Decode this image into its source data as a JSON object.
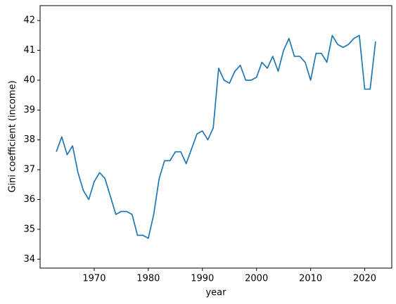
{
  "chart_data": {
    "type": "line",
    "xlabel": "year",
    "ylabel": "Gini coefficient (income)",
    "x": [
      1963,
      1964,
      1965,
      1966,
      1967,
      1968,
      1969,
      1970,
      1971,
      1972,
      1973,
      1974,
      1975,
      1976,
      1977,
      1978,
      1979,
      1980,
      1981,
      1982,
      1983,
      1984,
      1985,
      1986,
      1987,
      1988,
      1989,
      1990,
      1991,
      1992,
      1993,
      1994,
      1995,
      1996,
      1997,
      1998,
      1999,
      2000,
      2001,
      2002,
      2003,
      2004,
      2005,
      2006,
      2007,
      2008,
      2009,
      2010,
      2011,
      2012,
      2013,
      2014,
      2015,
      2016,
      2017,
      2018,
      2019,
      2020,
      2021,
      2022
    ],
    "values": [
      37.6,
      38.1,
      37.5,
      37.8,
      36.9,
      36.3,
      36.0,
      36.6,
      36.9,
      36.7,
      36.1,
      35.5,
      35.6,
      35.6,
      35.5,
      34.8,
      34.8,
      34.7,
      35.5,
      36.7,
      37.3,
      37.3,
      37.6,
      37.6,
      37.2,
      37.7,
      38.2,
      38.3,
      38.0,
      38.4,
      40.4,
      40.0,
      39.9,
      40.3,
      40.5,
      40.0,
      40.0,
      40.1,
      40.6,
      40.4,
      40.8,
      40.3,
      41.0,
      41.4,
      40.8,
      40.8,
      40.6,
      40.0,
      40.9,
      40.9,
      40.6,
      41.5,
      41.2,
      41.1,
      41.2,
      41.4,
      41.5,
      39.7,
      39.7,
      41.3
    ],
    "color": "#1f77b4",
    "xlim": [
      1960,
      2025
    ],
    "xticks": [
      1970,
      1980,
      1990,
      2000,
      2010,
      2020
    ],
    "ylim": [
      33.7,
      42.5
    ],
    "yticks": [
      34,
      35,
      36,
      37,
      38,
      39,
      40,
      41,
      42
    ]
  }
}
